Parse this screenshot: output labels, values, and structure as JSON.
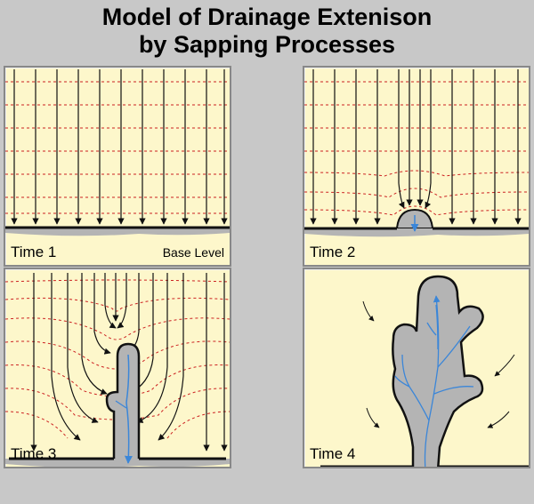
{
  "title": {
    "line1": "Model of Drainage Extenison",
    "line2": "by Sapping Processes"
  },
  "panels": [
    {
      "label": "Time 1",
      "extra_label": "Base Level"
    },
    {
      "label": "Time 2"
    },
    {
      "label": "Time 3"
    },
    {
      "label": "Time 4"
    }
  ],
  "colors": {
    "background": "#c8c8c8",
    "panel_fill": "#fdf7cb",
    "water_table": "#cc2222",
    "flow_arrow": "#111111",
    "channel_fill": "#b4b4b4",
    "stream": "#3b86d8"
  }
}
